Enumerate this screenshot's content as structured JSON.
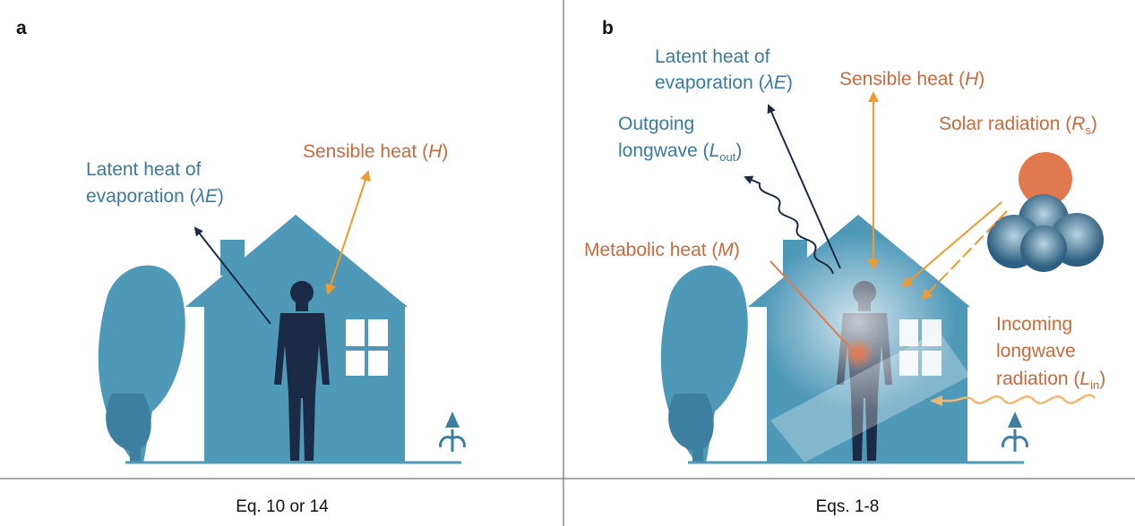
{
  "panels": [
    {
      "label": "a",
      "caption": "Eq. 10 or 14",
      "latent_line1": "Latent heat of",
      "latent_line2": "evaporation (",
      "latent_sym": "λE",
      "sensible": "Sensible heat (",
      "sensible_sym": "H"
    },
    {
      "label": "b",
      "caption": "Eqs. 1-8",
      "latent_line1": "Latent heat of",
      "latent_line2": "evaporation (",
      "latent_sym": "λE",
      "sensible": "Sensible heat (",
      "sensible_sym": "H",
      "outgoing_line1": "Outgoing",
      "outgoing_line2": "longwave (",
      "outgoing_sym": "L",
      "outgoing_sub": "out",
      "solar": "Solar radiation (",
      "solar_sym": "R",
      "solar_sub": "s",
      "metabolic": "Metabolic heat (",
      "metabolic_sym": "M",
      "incoming_line1": "Incoming",
      "incoming_line2": "longwave",
      "incoming_line3": "radiation (",
      "incoming_sym": "L",
      "incoming_sub": "in"
    }
  ],
  "close_paren": ")",
  "colors": {
    "house": "#4e98b8",
    "person": "#1b2b45",
    "blue_text": "#3a7a9c",
    "orange_text": "#c96a3e",
    "arrow_orange": "#ef9a2e",
    "sun": "#e07a4e"
  }
}
